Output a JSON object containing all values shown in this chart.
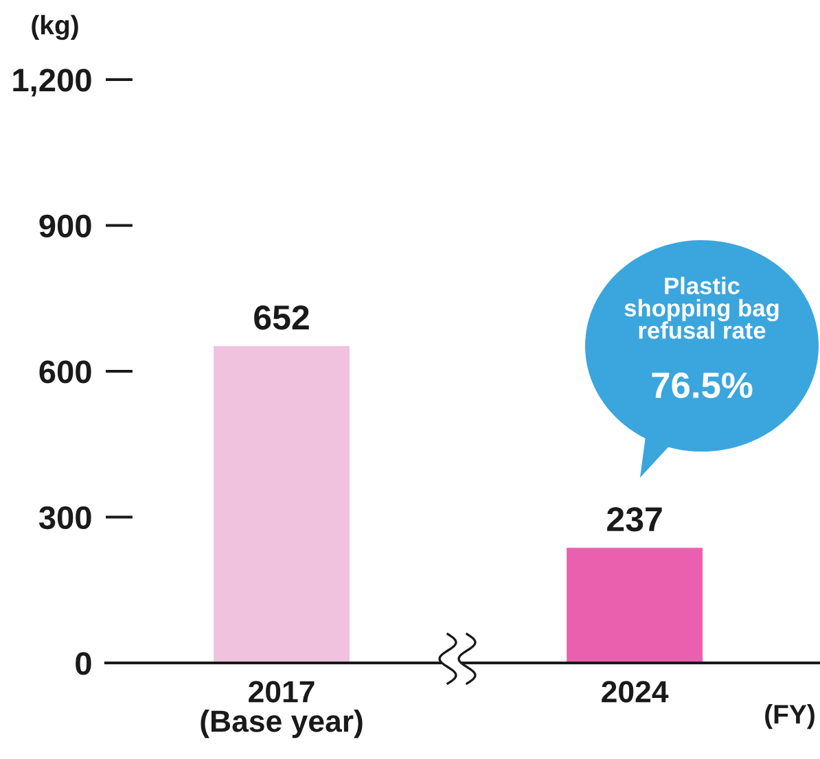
{
  "chart_data": {
    "type": "bar",
    "categories": [
      "2017\n(Base year)",
      "2024"
    ],
    "values": [
      652,
      237
    ],
    "colors": [
      "#f0c2de",
      "#ea60ae"
    ],
    "data_labels": true,
    "xlabel": "(FY)",
    "ylabel": "(kg)",
    "ylim": [
      0,
      1200
    ],
    "yticks": [
      0,
      300,
      600,
      900,
      {
        "value": 1200,
        "label": "1,200"
      }
    ],
    "annotations": [
      "Plastic\nshopping bag\nrefusal rate",
      "76.5%"
    ]
  }
}
